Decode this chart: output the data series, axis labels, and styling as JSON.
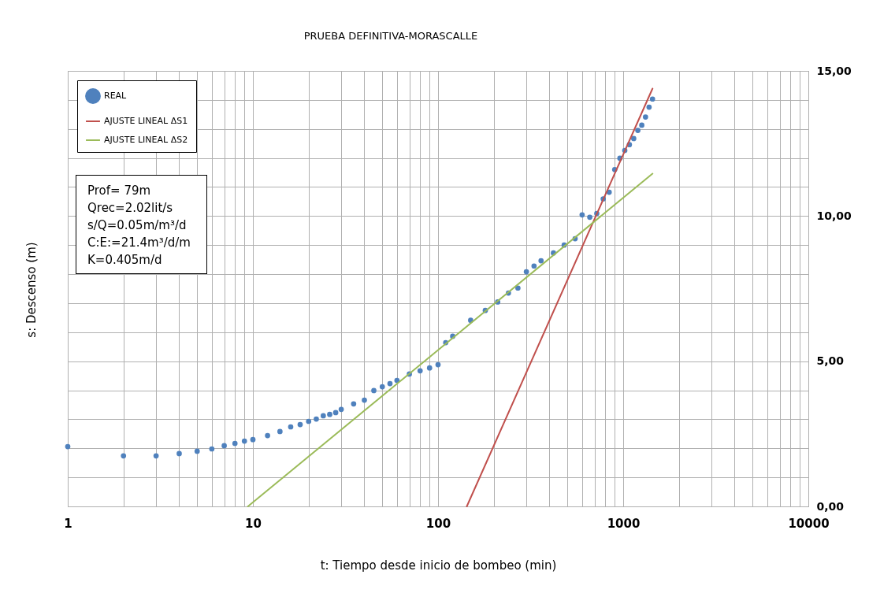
{
  "chart_data": {
    "type": "scatter",
    "title": "PRUEBA DEFINITIVA-MORASCALLE",
    "xlabel": "t: Tiempo desde inicio de bombeo (min)",
    "ylabel": "s: Descenso (m)",
    "log": "x",
    "grid": true,
    "legend": "top left",
    "xlim": [
      1,
      10000
    ],
    "xticks": [
      1,
      {
        "value": 2,
        "label": null
      },
      {
        "value": 3,
        "label": null
      },
      {
        "value": 4,
        "label": null
      },
      {
        "value": 5,
        "label": null
      },
      {
        "value": 6,
        "label": null
      },
      {
        "value": 7,
        "label": null
      },
      {
        "value": 8,
        "label": null
      },
      {
        "value": 9,
        "label": null
      },
      10,
      {
        "value": 20,
        "label": null
      },
      {
        "value": 30,
        "label": null
      },
      {
        "value": 40,
        "label": null
      },
      {
        "value": 50,
        "label": null
      },
      {
        "value": 60,
        "label": null
      },
      {
        "value": 70,
        "label": null
      },
      {
        "value": 80,
        "label": null
      },
      {
        "value": 90,
        "label": null
      },
      100,
      {
        "value": 200,
        "label": null
      },
      {
        "value": 300,
        "label": null
      },
      {
        "value": 400,
        "label": null
      },
      {
        "value": 500,
        "label": null
      },
      {
        "value": 600,
        "label": null
      },
      {
        "value": 700,
        "label": null
      },
      {
        "value": 800,
        "label": null
      },
      {
        "value": 900,
        "label": null
      },
      1000,
      {
        "value": 2000,
        "label": null
      },
      {
        "value": 3000,
        "label": null
      },
      {
        "value": 4000,
        "label": null
      },
      {
        "value": 5000,
        "label": null
      },
      {
        "value": 6000,
        "label": null
      },
      {
        "value": 7000,
        "label": null
      },
      {
        "value": 8000,
        "label": null
      },
      {
        "value": 9000,
        "label": null
      },
      10000
    ],
    "ylim": [
      0,
      15
    ],
    "yticks": [
      {
        "value": 0,
        "label": "0,00"
      },
      {
        "value": 1,
        "label": null
      },
      {
        "value": 2,
        "label": null
      },
      {
        "value": 3,
        "label": null
      },
      {
        "value": 4,
        "label": null
      },
      {
        "value": 5,
        "label": "5,00"
      },
      {
        "value": 6,
        "label": null
      },
      {
        "value": 7,
        "label": null
      },
      {
        "value": 8,
        "label": null
      },
      {
        "value": 9,
        "label": null
      },
      {
        "value": 10,
        "label": "10,00"
      },
      {
        "value": 11,
        "label": null
      },
      {
        "value": 12,
        "label": null
      },
      {
        "value": 13,
        "label": null
      },
      {
        "value": 14,
        "label": null
      },
      {
        "value": 15,
        "label": "15,00"
      }
    ],
    "annotations": [
      "Prof= 79m",
      "Qrec=2.02lit/s",
      "s/Q=0.05m/m³/d",
      "C:E:=21.4m³/d/m",
      "K=0.405m/d"
    ],
    "series": [
      {
        "name": "REAL",
        "color": "#4f81bd",
        "x": [
          1,
          2,
          3,
          4,
          5,
          6,
          7,
          8,
          9,
          10,
          12,
          14,
          16,
          18,
          20,
          22,
          24,
          26,
          28,
          30,
          35,
          40,
          45,
          50,
          55,
          60,
          70,
          80,
          90,
          100,
          110,
          120,
          150,
          180,
          210,
          240,
          270,
          300,
          330,
          360,
          420,
          480,
          550,
          600,
          660,
          720,
          780,
          840,
          900,
          960,
          1020,
          1080,
          1140,
          1200,
          1260,
          1320,
          1380,
          1440
        ],
        "values": [
          2.06,
          1.74,
          1.74,
          1.82,
          1.9,
          1.98,
          2.09,
          2.17,
          2.25,
          2.3,
          2.44,
          2.58,
          2.74,
          2.82,
          2.93,
          3.01,
          3.12,
          3.17,
          3.23,
          3.34,
          3.53,
          3.66,
          3.99,
          4.12,
          4.23,
          4.34,
          4.56,
          4.67,
          4.77,
          4.88,
          5.64,
          5.86,
          6.41,
          6.75,
          7.04,
          7.35,
          7.52,
          8.08,
          8.28,
          8.46,
          8.73,
          9.0,
          9.22,
          10.04,
          9.96,
          10.09,
          10.59,
          10.82,
          11.6,
          11.99,
          12.26,
          12.46,
          12.67,
          12.95,
          13.13,
          13.41,
          13.75,
          14.03
        ]
      },
      {
        "name": "AJUSTE LINEAL ΔS1",
        "type": "line",
        "color": "#c0504d",
        "x": [
          143,
          1440
        ],
        "values": [
          0,
          14.39
        ]
      },
      {
        "name": "AJUSTE LINEAL ΔS2",
        "type": "line",
        "color": "#9bbb59",
        "x": [
          9.4,
          1440
        ],
        "values": [
          0,
          11.46
        ]
      }
    ]
  }
}
